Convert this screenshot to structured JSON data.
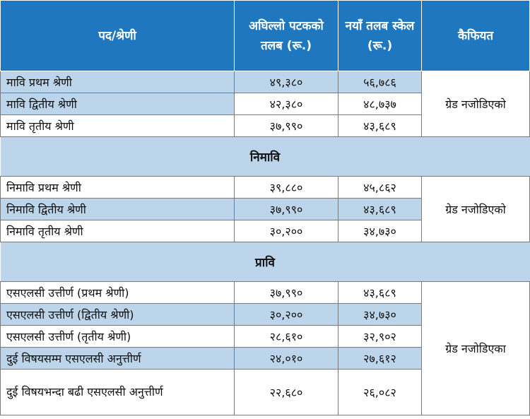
{
  "headers": {
    "post": "पद/श्रेणी",
    "previous_salary": "अघिल्लो पटकको तलब (रू.)",
    "new_scale": "नयाँ तलब स्केल (रू.)",
    "remarks": "कैफियत"
  },
  "groups": [
    {
      "section": "",
      "remark": "ग्रेड नजोडिएको",
      "rows": [
        {
          "post": "मावि प्रथम श्रेणी",
          "old": "४९,३८०",
          "new": "५६,७८६"
        },
        {
          "post": "मावि द्वितीय श्रेणी",
          "old": "४२,३८०",
          "new": "४८,७३७"
        },
        {
          "post": "मावि तृतीय श्रेणी",
          "old": "३७,९९०",
          "new": "४३,६८९"
        }
      ]
    },
    {
      "section": "निमावि",
      "remark": "ग्रेड नजोडिएको",
      "rows": [
        {
          "post": "निमावि प्रथम श्रेणी",
          "old": "३९,८८०",
          "new": "४५,८६२"
        },
        {
          "post": "निमावि द्वितीय श्रेणी",
          "old": "३७,९९०",
          "new": "४३,६८९"
        },
        {
          "post": "निमावि तृतीय श्रेणी",
          "old": "३०,२००",
          "new": "३४,७३०"
        }
      ]
    },
    {
      "section": "प्रावि",
      "remark": "ग्रेड नजोडिएका",
      "rows": [
        {
          "post": "एसएलसी उत्तीर्ण (प्रथम श्रेणी)",
          "old": "३७,९९०",
          "new": "४३,६८९"
        },
        {
          "post": "एसएलसी उत्तीर्ण (द्वितीय श्रेणी)",
          "old": "३०,२००",
          "new": "३४,७३०"
        },
        {
          "post": "एसएलसी उत्तीर्ण (तृतीय श्रेणी)",
          "old": "२८,६१०",
          "new": "३२,९०२"
        },
        {
          "post": "दुई विषयसम्म एसएलसी अनुत्तीर्ण",
          "old": "२४,०१०",
          "new": "२७,६१२"
        },
        {
          "post": "दुई विषयभन्दा बढी एसएलसी अनुत्तीर्ण",
          "old": "२२,६८०",
          "new": "२६,०८२"
        }
      ]
    }
  ],
  "colors": {
    "header_bg": "#1f78bf",
    "band": "#bdd5ea"
  }
}
